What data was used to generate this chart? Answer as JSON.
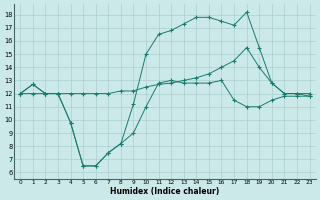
{
  "xlabel": "Humidex (Indice chaleur)",
  "xlim": [
    -0.5,
    23.5
  ],
  "ylim": [
    5.5,
    18.8
  ],
  "yticks": [
    6,
    7,
    8,
    9,
    10,
    11,
    12,
    13,
    14,
    15,
    16,
    17,
    18
  ],
  "xticks": [
    0,
    1,
    2,
    3,
    4,
    5,
    6,
    7,
    8,
    9,
    10,
    11,
    12,
    13,
    14,
    15,
    16,
    17,
    18,
    19,
    20,
    21,
    22,
    23
  ],
  "bg_color": "#cce9e9",
  "line_color": "#1a7a6e",
  "grid_color": "#aacfcf",
  "line1_x": [
    0,
    1,
    2,
    3,
    4,
    5,
    6,
    7,
    8,
    9,
    10,
    11,
    12,
    13,
    14,
    15,
    16,
    17,
    18,
    19,
    20,
    21,
    22,
    23
  ],
  "line1_y": [
    12,
    12.7,
    12,
    12,
    9.8,
    6.5,
    6.5,
    7.5,
    8.2,
    9.0,
    11.0,
    12.8,
    13.0,
    12.8,
    12.8,
    12.8,
    13.0,
    11.5,
    11.0,
    11.0,
    11.5,
    11.8,
    11.8,
    11.8
  ],
  "line2_x": [
    0,
    1,
    2,
    3,
    4,
    5,
    6,
    7,
    8,
    9,
    10,
    11,
    12,
    13,
    14,
    15,
    16,
    17,
    18,
    19,
    20,
    21,
    22,
    23
  ],
  "line2_y": [
    12,
    12,
    12,
    12,
    12,
    12,
    12,
    12,
    12.2,
    12.2,
    12.5,
    12.7,
    12.8,
    13.0,
    13.2,
    13.5,
    14.0,
    14.5,
    15.5,
    14.0,
    12.8,
    12.0,
    12.0,
    12.0
  ],
  "line3_x": [
    0,
    1,
    2,
    3,
    4,
    5,
    6,
    7,
    8,
    9,
    10,
    11,
    12,
    13,
    14,
    15,
    16,
    17,
    18,
    19,
    20,
    21,
    22,
    23
  ],
  "line3_y": [
    12,
    12.7,
    12,
    12,
    9.8,
    6.5,
    6.5,
    7.5,
    8.2,
    11.2,
    15.0,
    16.5,
    16.8,
    17.3,
    17.8,
    17.8,
    17.5,
    17.2,
    18.2,
    15.5,
    12.8,
    12.0,
    12.0,
    11.8
  ]
}
